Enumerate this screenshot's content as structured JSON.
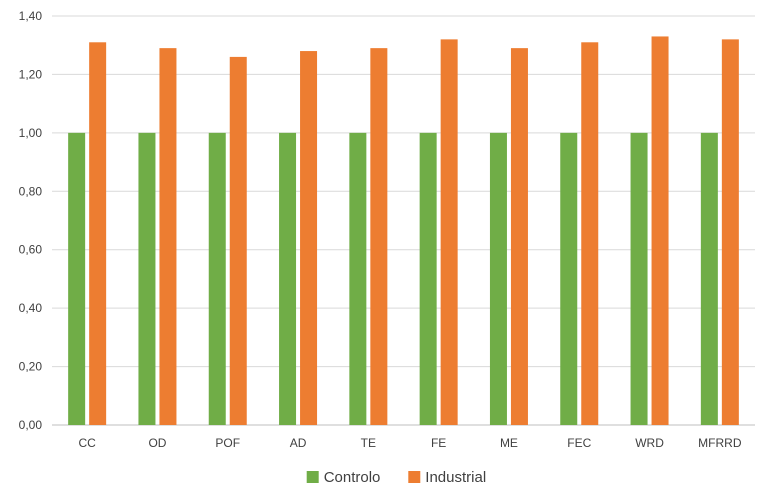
{
  "chart_data": {
    "type": "bar",
    "categories": [
      "CC",
      "OD",
      "POF",
      "AD",
      "TE",
      "FE",
      "ME",
      "FEC",
      "WRD",
      "MFRRD"
    ],
    "series": [
      {
        "name": "Controlo",
        "color": "#70ad47",
        "values": [
          1.0,
          1.0,
          1.0,
          1.0,
          1.0,
          1.0,
          1.0,
          1.0,
          1.0,
          1.0
        ]
      },
      {
        "name": "Industrial",
        "color": "#ed7d31",
        "values": [
          1.31,
          1.29,
          1.26,
          1.28,
          1.29,
          1.32,
          1.29,
          1.31,
          1.33,
          1.32
        ]
      }
    ],
    "ylim": [
      0,
      1.4
    ],
    "yticks": [
      "0,00",
      "0,20",
      "0,40",
      "0,60",
      "0,80",
      "1,00",
      "1,20",
      "1,40"
    ],
    "grid": true,
    "legend": "bottom-center",
    "gridColor": "#d9d9d9"
  }
}
